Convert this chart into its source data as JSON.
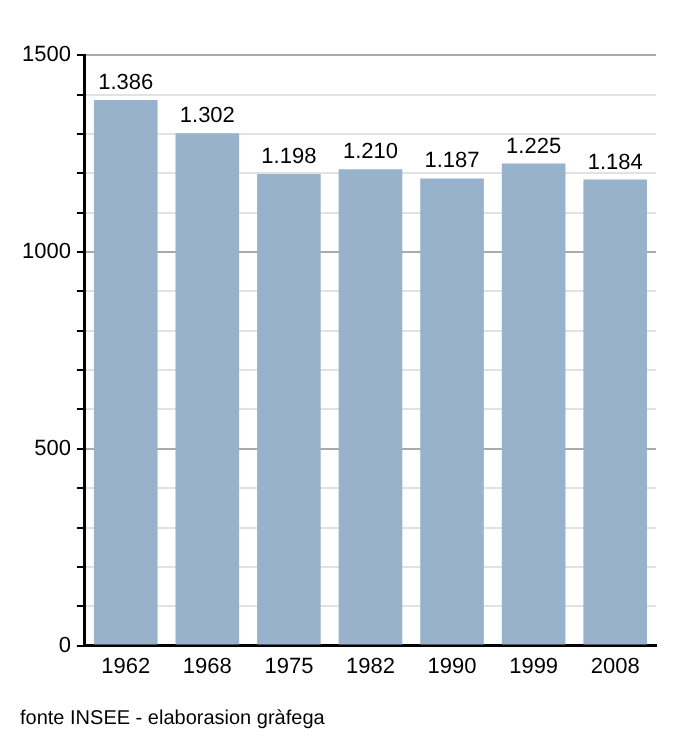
{
  "chart_data": {
    "type": "bar",
    "categories": [
      "1962",
      "1968",
      "1975",
      "1982",
      "1990",
      "1999",
      "2008"
    ],
    "values": [
      1386,
      1302,
      1198,
      1210,
      1187,
      1225,
      1184
    ],
    "value_labels": [
      "1.386",
      "1.302",
      "1.198",
      "1.210",
      "1.187",
      "1.225",
      "1.184"
    ],
    "color": "#98b2cc",
    "ylim": [
      0,
      1500
    ],
    "yticks": [
      0,
      {
        "value": 100,
        "label": null
      },
      {
        "value": 200,
        "label": null
      },
      {
        "value": 300,
        "label": null
      },
      {
        "value": 400,
        "label": null
      },
      500,
      {
        "value": 600,
        "label": null
      },
      {
        "value": 700,
        "label": null
      },
      {
        "value": 800,
        "label": null
      },
      {
        "value": 900,
        "label": null
      },
      1000,
      {
        "value": 1100,
        "label": null
      },
      {
        "value": 1200,
        "label": null
      },
      {
        "value": 1300,
        "label": null
      },
      {
        "value": 1400,
        "label": null
      },
      1500
    ],
    "grid": "y",
    "annotations": [
      "fonte INSEE - elaborasion gràfega"
    ]
  }
}
